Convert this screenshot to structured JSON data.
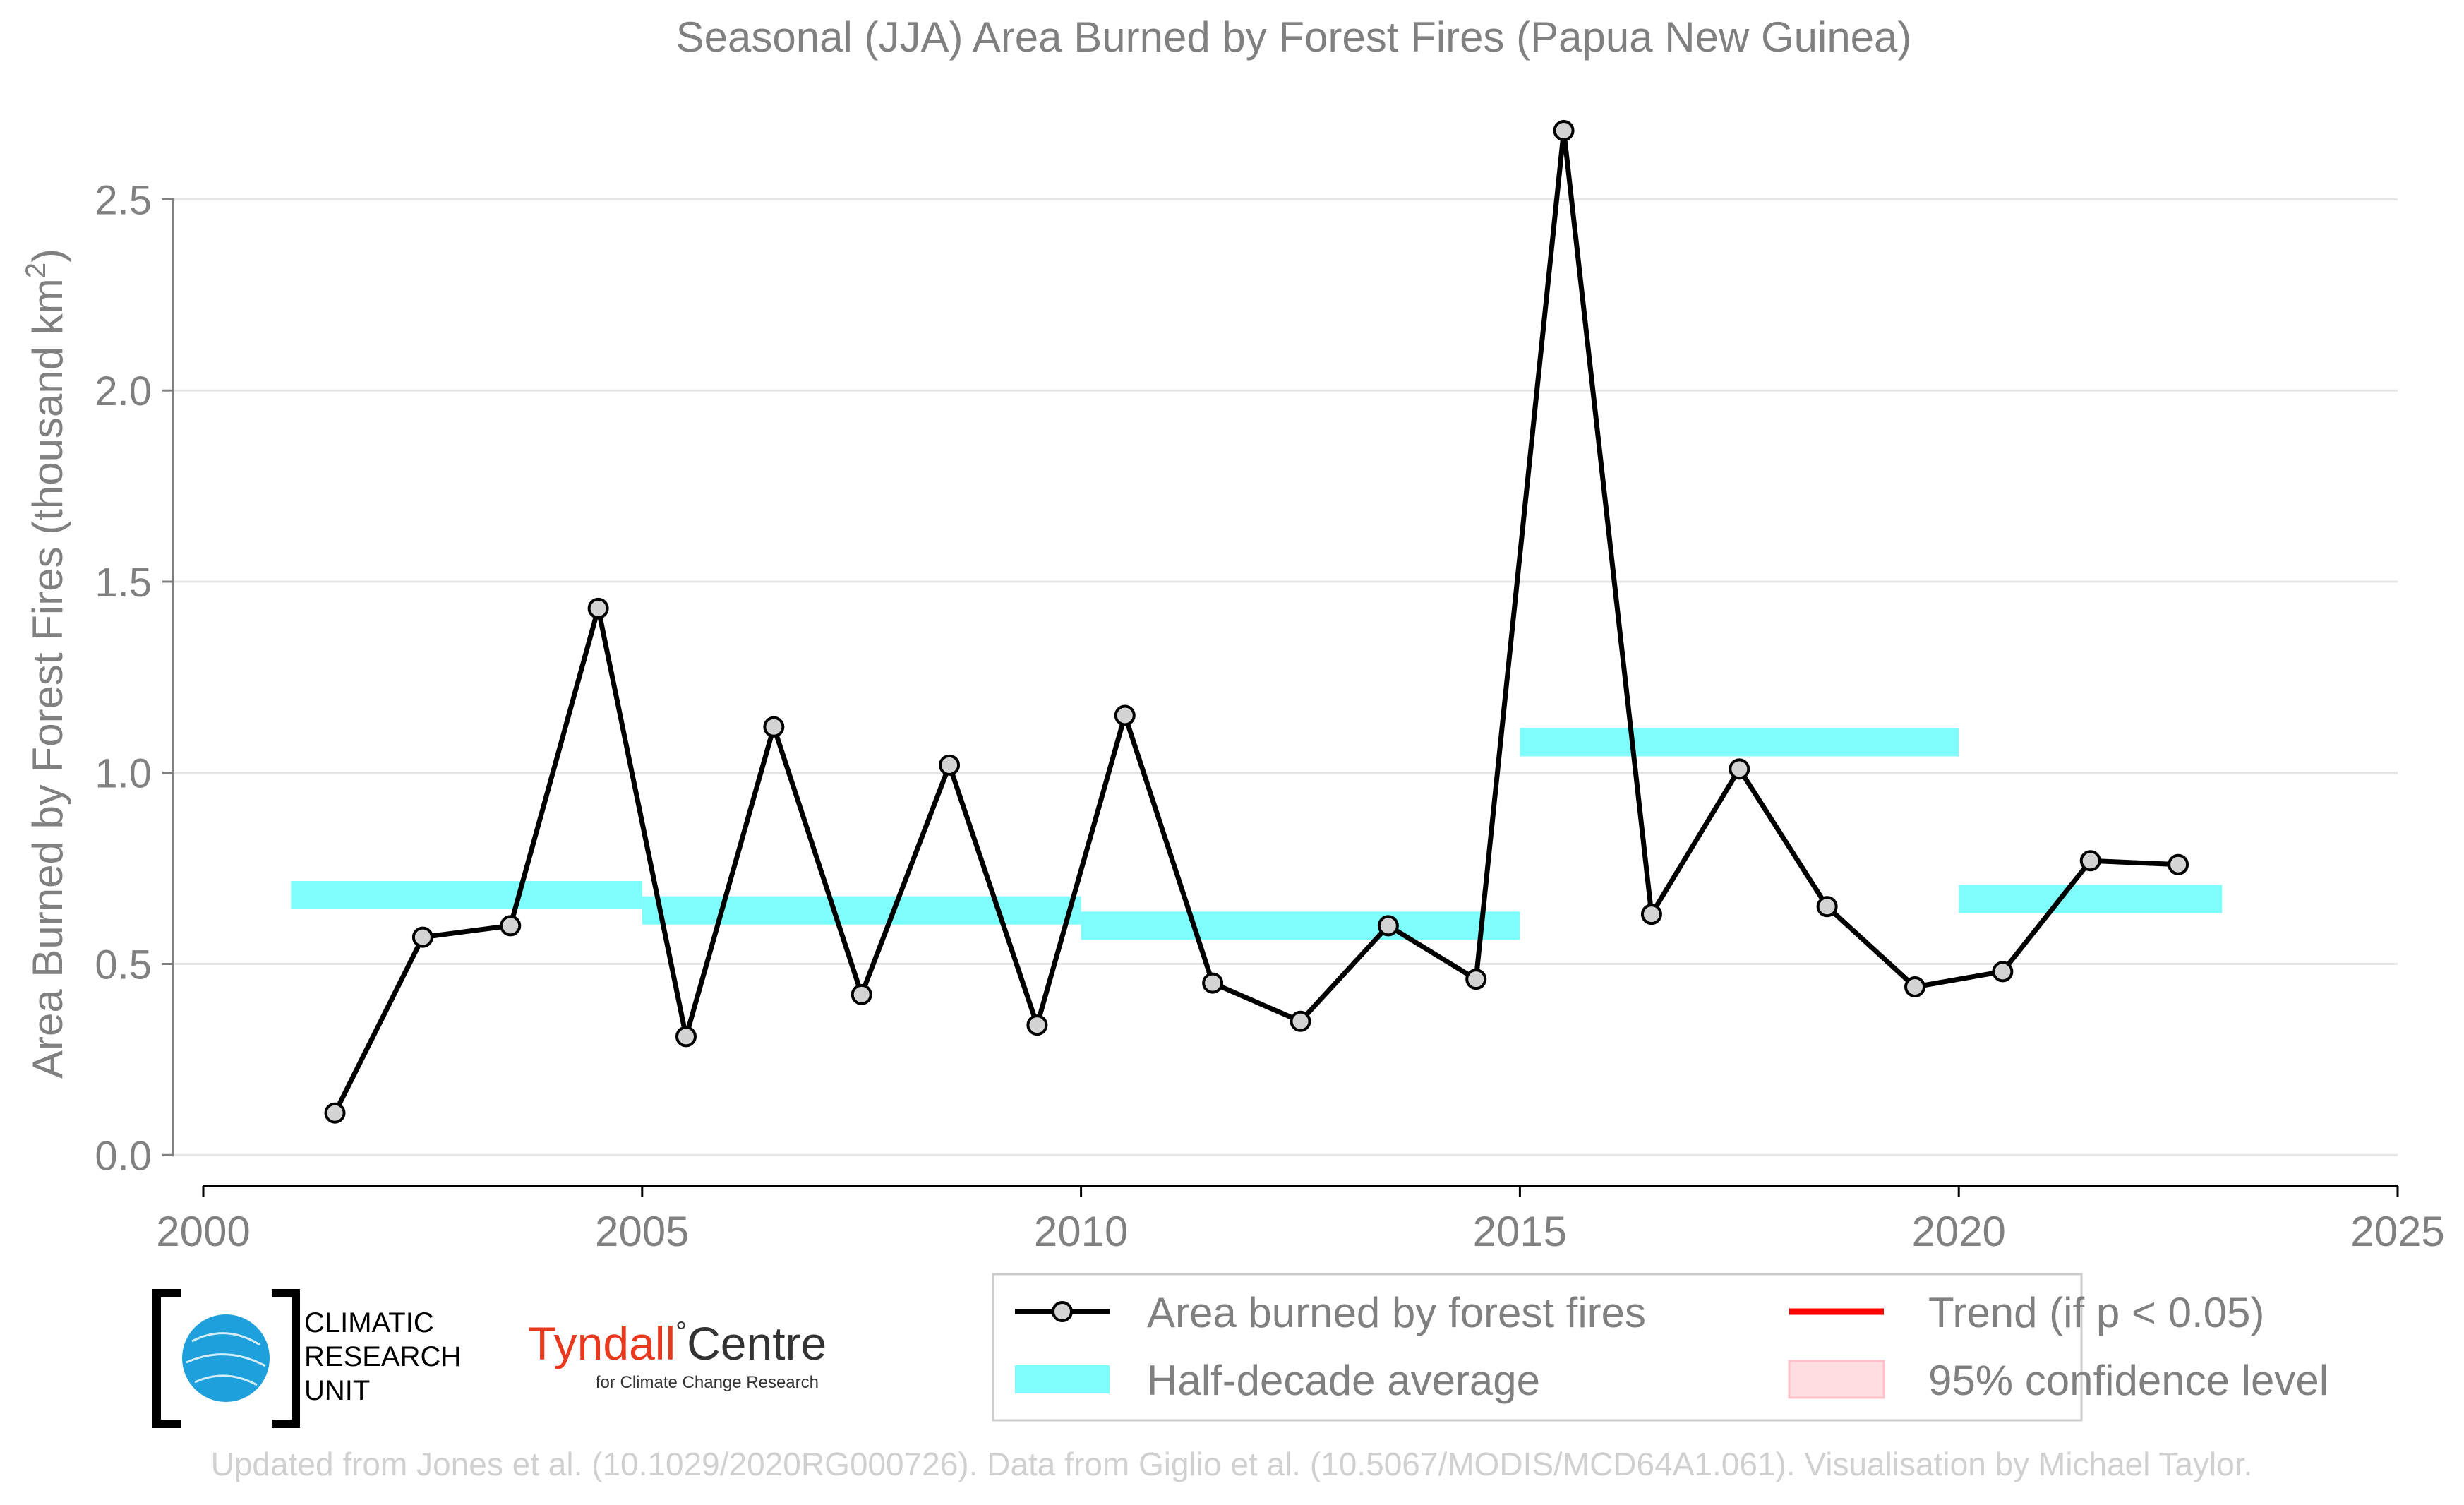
{
  "chart_data": {
    "type": "line",
    "title": "Seasonal (JJA) Area Burned by Forest Fires (Papua New Guinea)",
    "xlabel": "",
    "ylabel_main": "Area Burned by Forest Fires (thousand km",
    "ylabel_sup": "2",
    "ylabel_close": ")",
    "xlim": [
      2000,
      2025
    ],
    "ylim": [
      -0.09,
      2.8
    ],
    "grid": "horizontal",
    "x_ticks": [
      2000,
      2005,
      2010,
      2015,
      2020,
      2025
    ],
    "x_tick_labels": [
      "2000",
      "2005",
      "2010",
      "2015",
      "2020",
      "2025"
    ],
    "y_ticks": [
      0,
      0.5,
      1.0,
      1.5,
      2.0,
      2.5
    ],
    "y_tick_labels": [
      "0.0",
      "0.5",
      "1.0",
      "1.5",
      "2.0",
      "2.5"
    ],
    "series": [
      {
        "name": "Area burned by forest fires",
        "color": "#000000",
        "marker_fill": "#d3d3d3",
        "x": [
          2001.5,
          2002.5,
          2003.5,
          2004.5,
          2005.5,
          2006.5,
          2007.5,
          2008.5,
          2009.5,
          2010.5,
          2011.5,
          2012.5,
          2013.5,
          2014.5,
          2015.5,
          2016.5,
          2017.5,
          2018.5,
          2019.5,
          2020.5,
          2021.5,
          2022.5
        ],
        "y": [
          0.11,
          0.57,
          0.6,
          1.43,
          0.31,
          1.12,
          0.42,
          1.02,
          0.34,
          1.15,
          0.45,
          0.35,
          0.6,
          0.46,
          2.68,
          0.63,
          1.01,
          0.65,
          0.44,
          0.48,
          0.77,
          0.76
        ]
      }
    ],
    "half_decade_average": {
      "name": "Half-decade average",
      "color": "#7ffcfc",
      "segments": [
        {
          "x0": 2001,
          "x1": 2005,
          "y": 0.68
        },
        {
          "x0": 2005,
          "x1": 2010,
          "y": 0.64
        },
        {
          "x0": 2010,
          "x1": 2015,
          "y": 0.6
        },
        {
          "x0": 2015,
          "x1": 2020,
          "y": 1.08
        },
        {
          "x0": 2020,
          "x1": 2023,
          "y": 0.67
        }
      ]
    },
    "legend": {
      "placement": "bottom-right",
      "items": [
        {
          "label": "Area burned by forest fires",
          "kind": "line-marker",
          "color": "#000000"
        },
        {
          "label": "Trend (if p < 0.05)",
          "kind": "line",
          "color": "#ff0000"
        },
        {
          "label": "Half-decade average",
          "kind": "band",
          "color": "#7ffcfc"
        },
        {
          "label": "95% confidence level",
          "kind": "box",
          "color": "#ffdde1"
        }
      ]
    }
  },
  "logos": {
    "cru": {
      "line1": "CLIMATIC",
      "line2": "RESEARCH",
      "line3": "UNIT"
    },
    "tyndall": {
      "name_red": "Tyndall",
      "degree": "°",
      "name_dark": "Centre",
      "subtitle": "for Climate Change Research"
    }
  },
  "footer": {
    "credit": "Updated from Jones et al. (10.1029/2020RG000726). Data from Giglio et al. (10.5067/MODIS/MCD64A1.061). Visualisation by Michael Taylor."
  },
  "colors": {
    "text_gray": "#808080",
    "grid": "#e5e5e5",
    "footer_gray": "#d0d0d0",
    "cru_blue": "#1ea0dc",
    "tyndall_red": "#e8381d"
  }
}
